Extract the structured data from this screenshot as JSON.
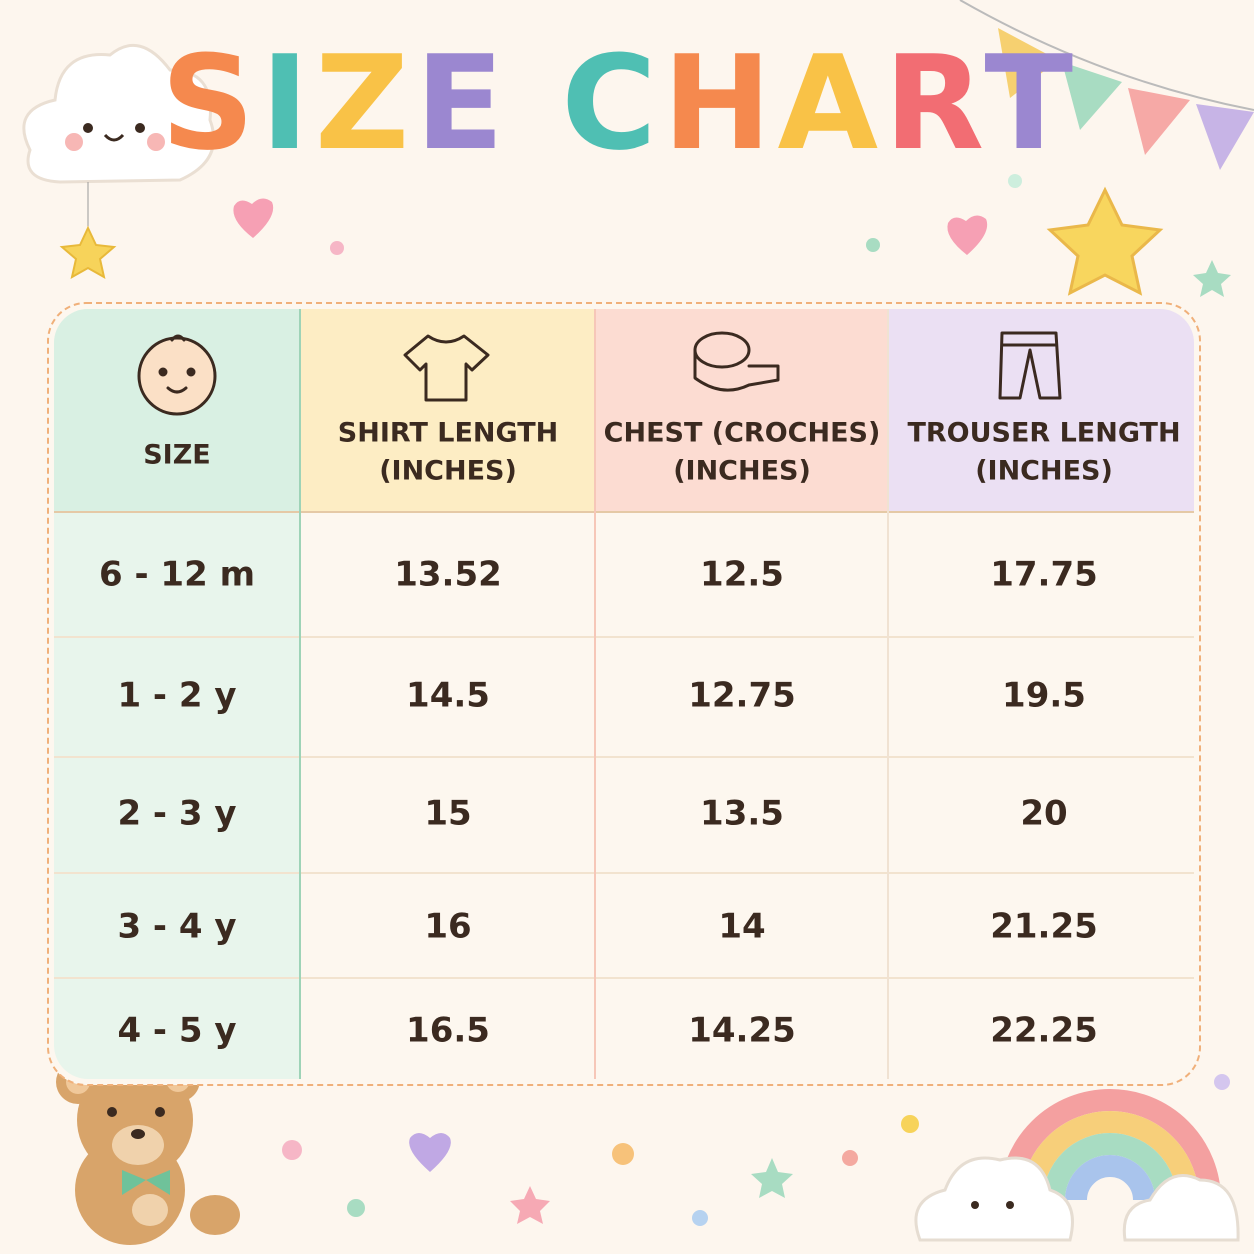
{
  "header": {
    "title": "SIZE CHART"
  },
  "table": {
    "columns": [
      [
        "SIZE"
      ],
      [
        "SHIRT LENGTH",
        "(INCHES)"
      ],
      [
        "CHEST (CROCHES)",
        "(INCHES)"
      ],
      [
        "TROUSER LENGTH",
        "(INCHES)"
      ]
    ],
    "rows": [
      [
        "6 - 12 m",
        "13.52",
        "12.5",
        "17.75"
      ],
      [
        "1 - 2 y",
        "14.5",
        "12.75",
        "19.5"
      ],
      [
        "2 - 3 y",
        "15",
        "13.5",
        "20"
      ],
      [
        "3 - 4 y",
        "16",
        "14",
        "21.25"
      ],
      [
        "4 - 5 y",
        "16.5",
        "14.25",
        "22.25"
      ]
    ]
  }
}
